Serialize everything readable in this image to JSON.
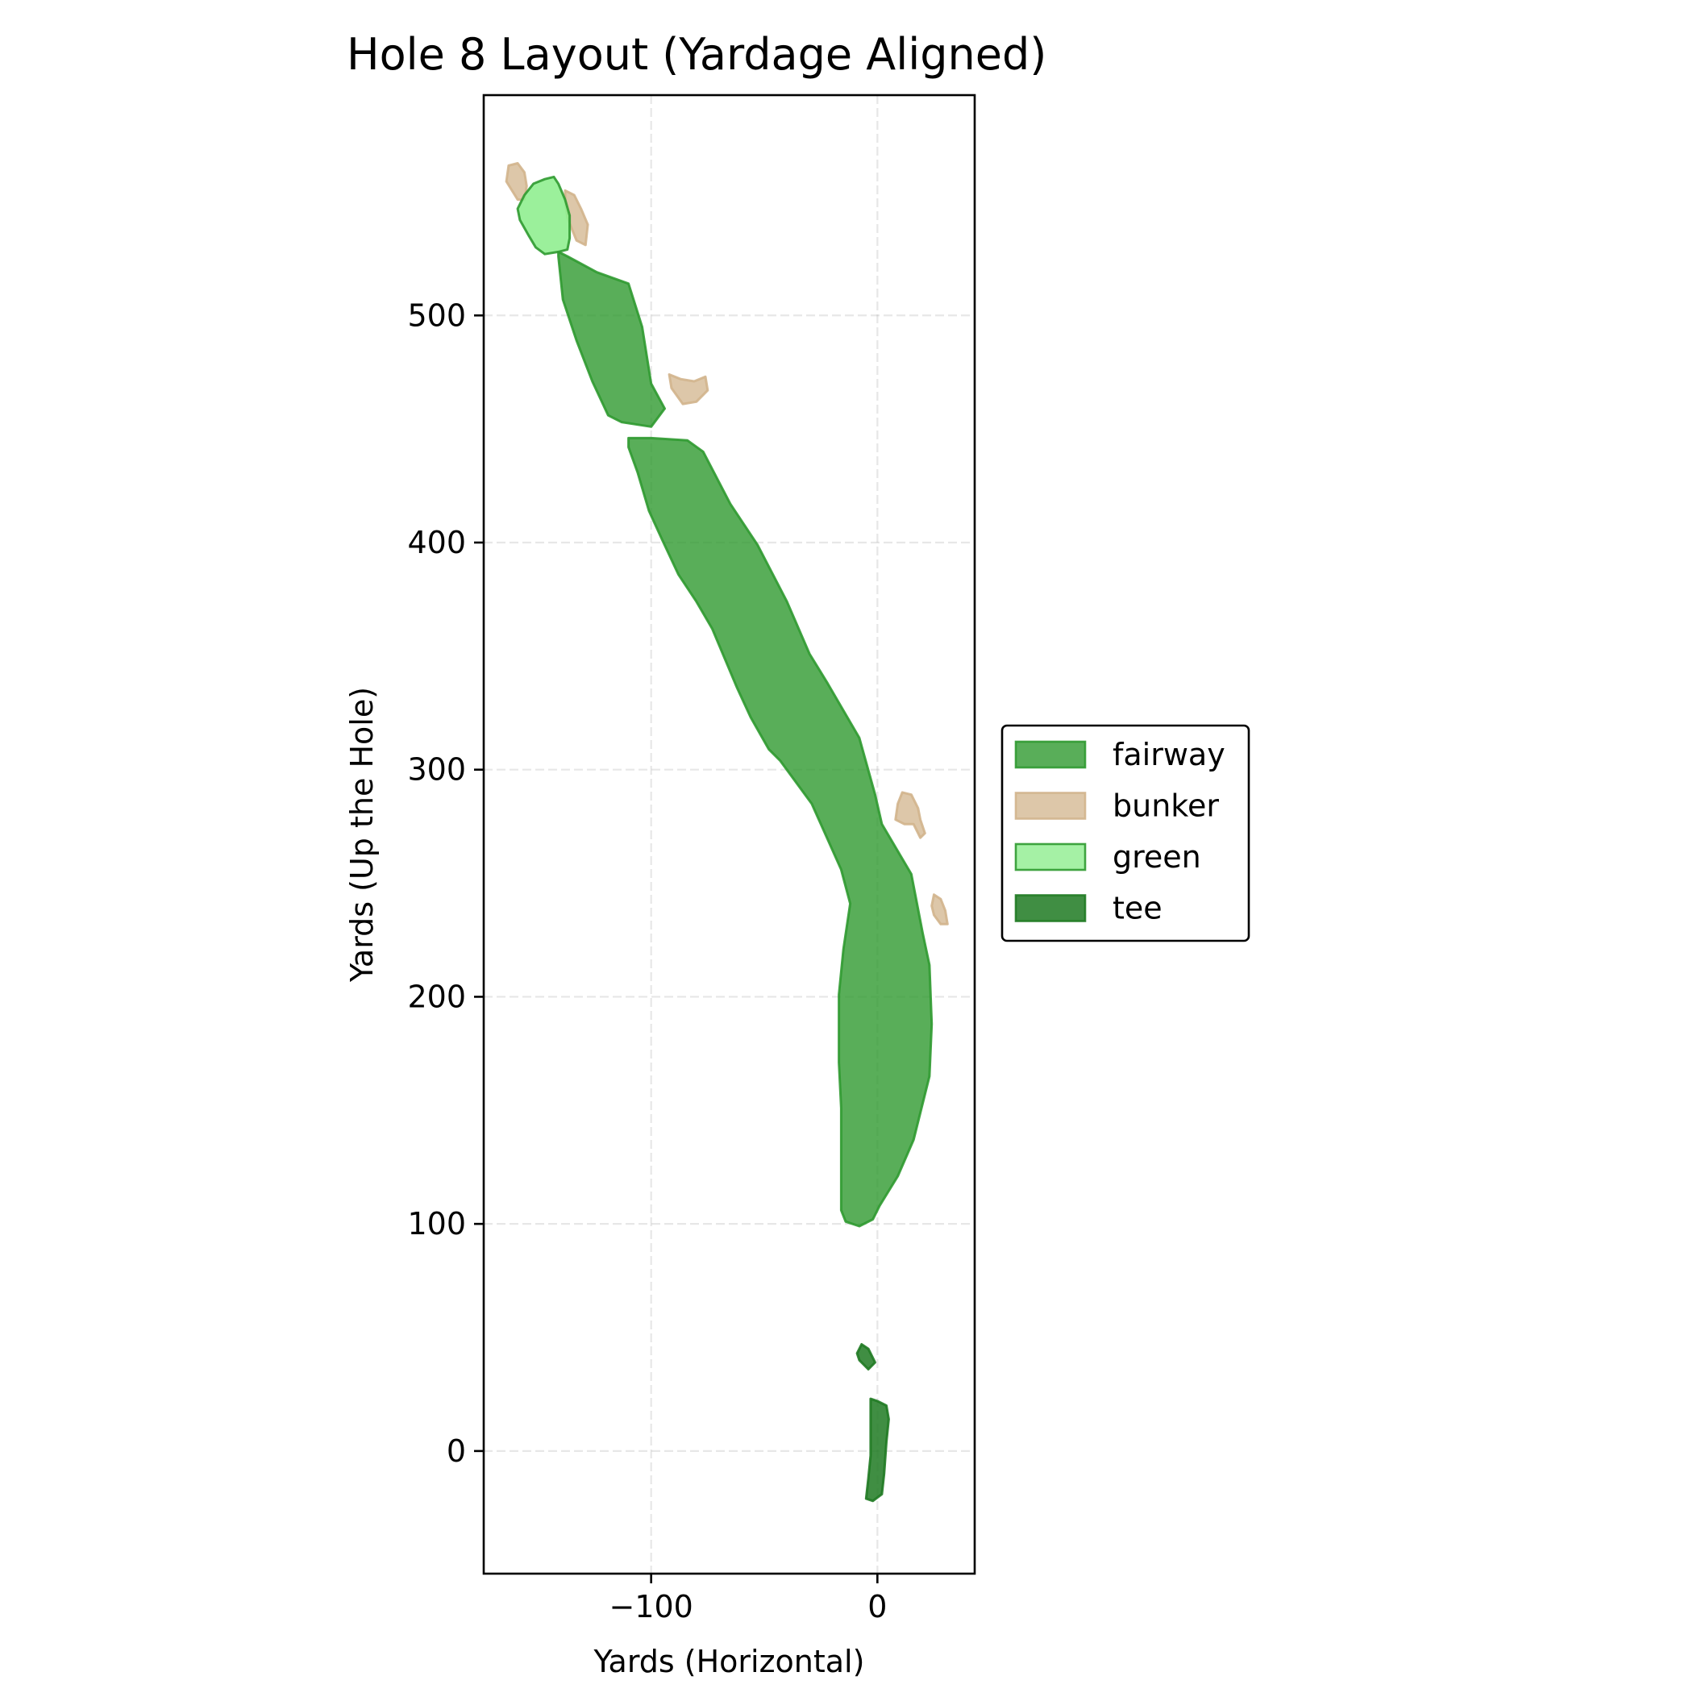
{
  "chart_data": {
    "type": "area",
    "title": "Hole 8 Layout (Yardage Aligned)",
    "xlabel": "Yards (Horizontal)",
    "ylabel": "Yards (Up the Hole)",
    "xlim": [
      -174,
      43
    ],
    "ylim": [
      -54,
      597
    ],
    "xticks": [
      -100,
      0
    ],
    "xtick_labels": [
      "−100",
      "0"
    ],
    "yticks": [
      0,
      100,
      200,
      300,
      400,
      500
    ],
    "ytick_labels": [
      "0",
      "100",
      "200",
      "300",
      "400",
      "500"
    ],
    "grid": true,
    "legend_position": "right, outside plot, vertically centered",
    "legend": [
      {
        "label": "fairway",
        "color": "#2f9a30"
      },
      {
        "label": "bunker",
        "color": "#d2b48c"
      },
      {
        "label": "green",
        "color": "#90ee90"
      },
      {
        "label": "tee",
        "color": "#1f7a22"
      }
    ],
    "series": [
      {
        "name": "fairway",
        "fill": "#2f9a30",
        "edge": "#2f9a30",
        "fill_opacity": 0.8,
        "polygons": [
          [
            [
              -141,
              528
            ],
            [
              -137,
              526
            ],
            [
              -124,
              519
            ],
            [
              -110,
              514
            ],
            [
              -104,
              495
            ],
            [
              -100,
              470
            ],
            [
              -94,
              459
            ],
            [
              -100,
              451
            ],
            [
              -113,
              453
            ],
            [
              -119,
              456
            ],
            [
              -126,
              471
            ],
            [
              -133,
              489
            ],
            [
              -139,
              507
            ],
            [
              -141,
              526
            ]
          ],
          [
            [
              -110,
              446
            ],
            [
              -100,
              446
            ],
            [
              -84,
              445
            ],
            [
              -77,
              440
            ],
            [
              -65,
              417
            ],
            [
              -53,
              399
            ],
            [
              -40,
              374
            ],
            [
              -30,
              351
            ],
            [
              -22,
              338
            ],
            [
              -8,
              314
            ],
            [
              -1,
              289
            ],
            [
              2,
              276
            ],
            [
              15,
              254
            ],
            [
              20,
              228
            ],
            [
              23,
              214
            ],
            [
              24,
              188
            ],
            [
              23,
              165
            ],
            [
              16,
              137
            ],
            [
              9,
              121
            ],
            [
              1,
              108
            ],
            [
              -2,
              102
            ],
            [
              -8,
              99
            ],
            [
              -14,
              101
            ],
            [
              -16,
              106
            ],
            [
              -16,
              125
            ],
            [
              -16,
              151
            ],
            [
              -17,
              171
            ],
            [
              -17,
              201
            ],
            [
              -15,
              221
            ],
            [
              -12,
              241
            ],
            [
              -16,
              256
            ],
            [
              -29,
              285
            ],
            [
              -43,
              304
            ],
            [
              -48,
              309
            ],
            [
              -56,
              323
            ],
            [
              -62,
              336
            ],
            [
              -73,
              362
            ],
            [
              -80,
              374
            ],
            [
              -88,
              386
            ],
            [
              -95,
              401
            ],
            [
              -101,
              414
            ],
            [
              -106,
              431
            ],
            [
              -110,
              442
            ]
          ]
        ]
      },
      {
        "name": "bunker",
        "fill": "#d2b48c",
        "edge": "#d2b48c",
        "fill_opacity": 0.75,
        "polygons": [
          [
            [
              -163,
              566
            ],
            [
              -159,
              567
            ],
            [
              -156,
              563
            ],
            [
              -155,
              557
            ],
            [
              -156,
              551
            ],
            [
              -159,
              551
            ],
            [
              -164,
              559
            ]
          ],
          [
            [
              -138,
              555
            ],
            [
              -134,
              553
            ],
            [
              -131,
              547
            ],
            [
              -128,
              540
            ],
            [
              -129,
              531
            ],
            [
              -133,
              533
            ],
            [
              -137,
              543
            ],
            [
              -138,
              550
            ]
          ],
          [
            [
              -92,
              474
            ],
            [
              -87,
              472
            ],
            [
              -81,
              471
            ],
            [
              -76,
              473
            ],
            [
              -75,
              467
            ],
            [
              -80,
              462
            ],
            [
              -86,
              461
            ],
            [
              -91,
              468
            ]
          ],
          [
            [
              11,
              290
            ],
            [
              15,
              289
            ],
            [
              18,
              283
            ],
            [
              19,
              278
            ],
            [
              21,
              272
            ],
            [
              19,
              270
            ],
            [
              16,
              276
            ],
            [
              12,
              276
            ],
            [
              8,
              278
            ],
            [
              9,
              285
            ]
          ],
          [
            [
              25,
              245
            ],
            [
              28,
              243
            ],
            [
              30,
              238
            ],
            [
              31,
              232
            ],
            [
              28,
              232
            ],
            [
              25,
              236
            ],
            [
              24,
              240
            ]
          ]
        ]
      },
      {
        "name": "green",
        "fill": "#90ee90",
        "edge": "#2f9a30",
        "fill_opacity": 0.9,
        "polygons": [
          [
            [
              -147,
              560
            ],
            [
              -143,
              561
            ],
            [
              -141,
              558
            ],
            [
              -138,
              551
            ],
            [
              -136,
              544
            ],
            [
              -136,
              534
            ],
            [
              -137,
              529
            ],
            [
              -141,
              528
            ],
            [
              -147,
              527
            ],
            [
              -151,
              530
            ],
            [
              -154,
              535
            ],
            [
              -158,
              542
            ],
            [
              -159,
              547
            ],
            [
              -156,
              553
            ],
            [
              -152,
              558
            ]
          ]
        ]
      },
      {
        "name": "tee",
        "fill": "#1f7a22",
        "edge": "#1f7a22",
        "fill_opacity": 0.85,
        "polygons": [
          [
            [
              -7,
              47
            ],
            [
              -4,
              45
            ],
            [
              -1,
              39
            ],
            [
              -4,
              36
            ],
            [
              -8,
              40
            ],
            [
              -9,
              43
            ]
          ],
          [
            [
              -3,
              23
            ],
            [
              0,
              22
            ],
            [
              4,
              20
            ],
            [
              5,
              14
            ],
            [
              4,
              4
            ],
            [
              3,
              -10
            ],
            [
              2,
              -19
            ],
            [
              -2,
              -22
            ],
            [
              -5,
              -21
            ],
            [
              -4,
              -12
            ],
            [
              -3,
              -2
            ],
            [
              -3,
              10
            ],
            [
              -3,
              19
            ]
          ]
        ]
      }
    ]
  }
}
